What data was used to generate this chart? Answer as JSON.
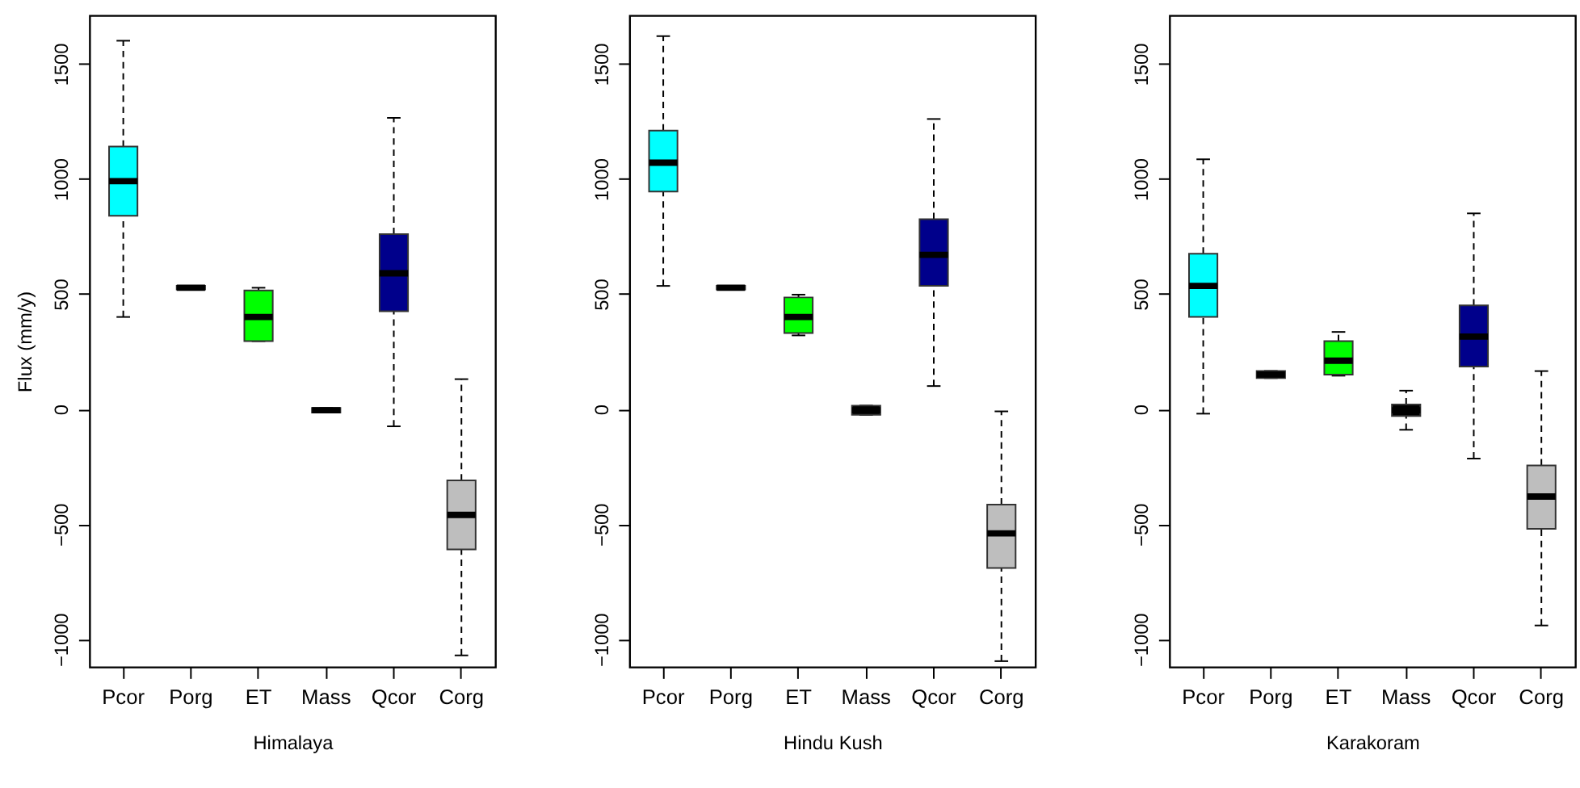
{
  "chart_data": [
    {
      "type": "box",
      "xlabel": "Himalaya",
      "ylabel": "Flux (mm/y)",
      "categories": [
        "Pcor",
        "Porg",
        "ET",
        "Mass",
        "Qcor",
        "Corg"
      ],
      "colors": [
        "#00ffff",
        "#000000",
        "#00ff00",
        "#000000",
        "#00008b",
        "#bebebe"
      ],
      "ylim": [
        -1120,
        1710
      ],
      "yticks": [
        -1000,
        -500,
        0,
        500,
        1000,
        1500
      ],
      "grid": false,
      "line_style": "dashed",
      "boxes": [
        {
          "low": 400,
          "q1": 840,
          "median": 990,
          "q3": 1140,
          "high": 1600
        },
        {
          "low": 520,
          "q1": 520,
          "median": 527,
          "q3": 535,
          "high": 535
        },
        {
          "low": 295,
          "q1": 295,
          "median": 400,
          "q3": 515,
          "high": 527
        },
        {
          "low": -15,
          "q1": -15,
          "median": -5,
          "q3": 5,
          "high": 5
        },
        {
          "low": -75,
          "q1": 425,
          "median": 590,
          "q3": 760,
          "high": 1265
        },
        {
          "low": -1070,
          "q1": -610,
          "median": -460,
          "q3": -310,
          "high": 130
        }
      ]
    },
    {
      "type": "box",
      "xlabel": "Hindu Kush",
      "categories": [
        "Pcor",
        "Porg",
        "ET",
        "Mass",
        "Qcor",
        "Corg"
      ],
      "colors": [
        "#00ffff",
        "#000000",
        "#00ff00",
        "#000000",
        "#00008b",
        "#bebebe"
      ],
      "ylim": [
        -1120,
        1710
      ],
      "yticks": [
        -1000,
        -500,
        0,
        500,
        1000,
        1500
      ],
      "grid": false,
      "line_style": "dashed",
      "boxes": [
        {
          "low": 535,
          "q1": 945,
          "median": 1070,
          "q3": 1210,
          "high": 1620
        },
        {
          "low": 520,
          "q1": 520,
          "median": 527,
          "q3": 535,
          "high": 535
        },
        {
          "low": 320,
          "q1": 330,
          "median": 400,
          "q3": 485,
          "high": 497
        },
        {
          "low": -25,
          "q1": -25,
          "median": -5,
          "q3": 15,
          "high": 15
        },
        {
          "low": 100,
          "q1": 535,
          "median": 670,
          "q3": 825,
          "high": 1260
        },
        {
          "low": -1095,
          "q1": -690,
          "median": -540,
          "q3": -415,
          "high": -10
        }
      ]
    },
    {
      "type": "box",
      "xlabel": "Karakoram",
      "categories": [
        "Pcor",
        "Porg",
        "ET",
        "Mass",
        "Qcor",
        "Corg"
      ],
      "colors": [
        "#00ffff",
        "#000000",
        "#00ff00",
        "#000000",
        "#00008b",
        "#bebebe"
      ],
      "ylim": [
        -1120,
        1710
      ],
      "yticks": [
        -1000,
        -500,
        0,
        500,
        1000,
        1500
      ],
      "grid": false,
      "line_style": "dashed",
      "boxes": [
        {
          "low": -20,
          "q1": 400,
          "median": 535,
          "q3": 675,
          "high": 1085
        },
        {
          "low": 135,
          "q1": 135,
          "median": 150,
          "q3": 165,
          "high": 165
        },
        {
          "low": 145,
          "q1": 150,
          "median": 210,
          "q3": 295,
          "high": 335
        },
        {
          "low": -90,
          "q1": -30,
          "median": -5,
          "q3": 20,
          "high": 80
        },
        {
          "low": -215,
          "q1": 185,
          "median": 315,
          "q3": 450,
          "high": 850
        },
        {
          "low": -940,
          "q1": -520,
          "median": -380,
          "q3": -245,
          "high": 165
        }
      ]
    }
  ]
}
